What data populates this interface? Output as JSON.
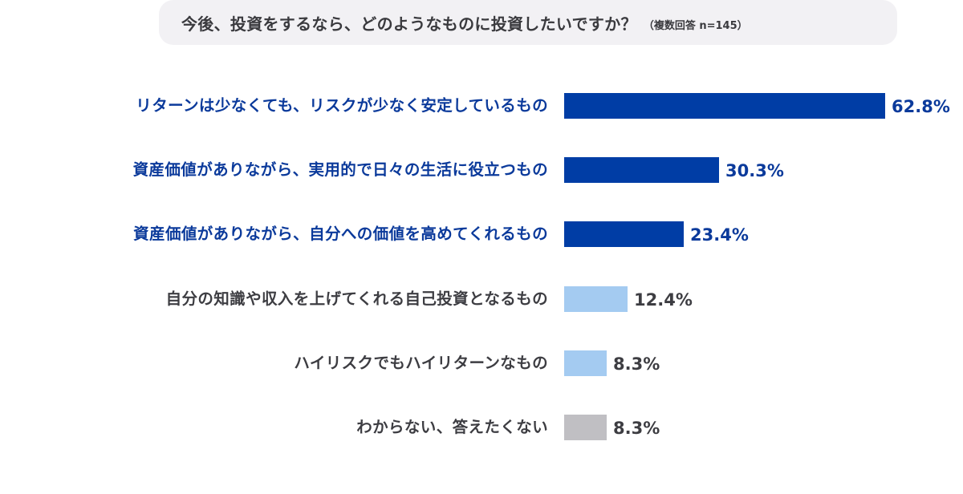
{
  "title": {
    "main": "今後、投資をするなら、どのようなものに投資したいですか？",
    "note": "（複数回答 n=145）"
  },
  "colors": {
    "dark_blue": "#003da5",
    "light_blue": "#a4cbf1",
    "gray": "#c0bfc3",
    "blue_text": "#0b3a9b",
    "gray_text": "#3d3d42",
    "title_bg": "#f2f1f4"
  },
  "chart_data": {
    "type": "bar",
    "orientation": "horizontal",
    "title": "今後、投資をするなら、どのようなものに投資したいですか？（複数回答 n=145）",
    "xlabel": "",
    "ylabel": "",
    "unit": "%",
    "grid": false,
    "legend": null,
    "categories": [
      "リターンは少なくても、リスクが少なく安定しているもの",
      "資産価値がありながら、実用的で日々の生活に役立つもの",
      "資産価値がありながら、自分への価値を高めてくれるもの",
      "自分の知識や収入を上げてくれる自己投資となるもの",
      "ハイリスクでもハイリターンなもの",
      "わからない、答えたくない"
    ],
    "values": [
      62.8,
      30.3,
      23.4,
      12.4,
      8.3,
      8.3
    ],
    "value_labels": [
      "62.8%",
      "30.3%",
      "23.4%",
      "12.4%",
      "8.3%",
      "8.3%"
    ],
    "bar_colors": [
      "#003da5",
      "#003da5",
      "#003da5",
      "#a4cbf1",
      "#a4cbf1",
      "#c0bfc3"
    ],
    "label_colors": [
      "#0b3a9b",
      "#0b3a9b",
      "#0b3a9b",
      "#3d3d42",
      "#3d3d42",
      "#3d3d42"
    ],
    "sample_size": 145
  }
}
